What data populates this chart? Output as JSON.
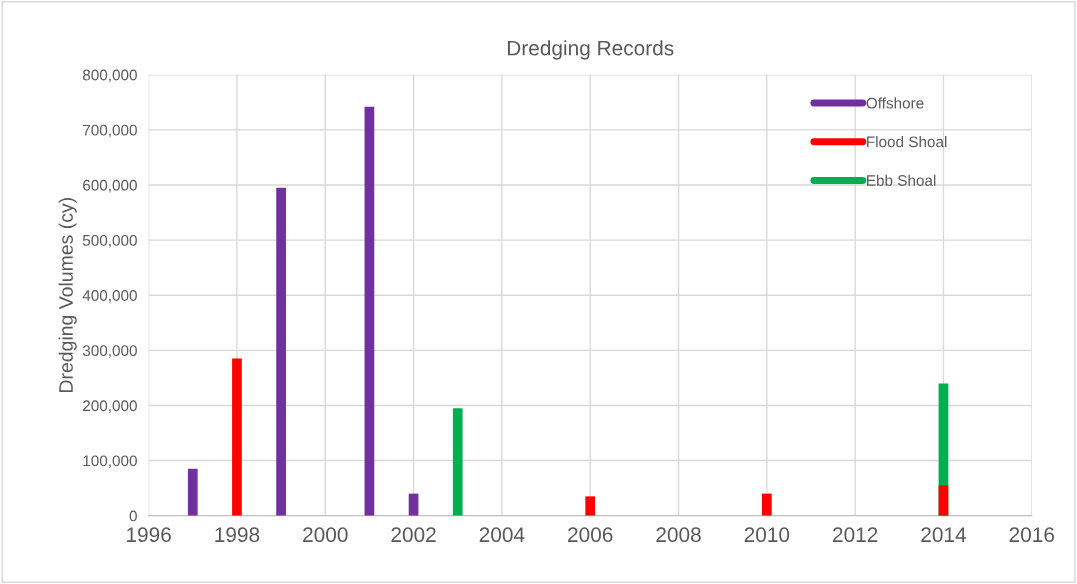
{
  "chart_data": {
    "type": "bar",
    "title": "Dredging Records",
    "ylabel": "Dredging Volumes (cy)",
    "series": [
      {
        "name": "Offshore",
        "color": "#7030a0",
        "x": [
          1997,
          1999,
          2001,
          2002
        ],
        "values": [
          85000,
          595000,
          742000,
          40000
        ]
      },
      {
        "name": "Flood Shoal",
        "color": "#ff0000",
        "x": [
          1998,
          2006,
          2010,
          2014
        ],
        "values": [
          285000,
          35000,
          40000,
          55000
        ]
      },
      {
        "name": "Ebb Shoal",
        "color": "#00b050",
        "x": [
          2003,
          2014
        ],
        "values": [
          195000,
          240000
        ]
      }
    ],
    "xlim": [
      1996,
      2016
    ],
    "xticks": [
      1996,
      1998,
      2000,
      2002,
      2004,
      2006,
      2008,
      2010,
      2012,
      2014,
      2016
    ],
    "ylim": [
      0,
      800000
    ],
    "yticks": [
      {
        "value": 0,
        "label": "0"
      },
      {
        "value": 100000,
        "label": "100,000"
      },
      {
        "value": 200000,
        "label": "200,000"
      },
      {
        "value": 300000,
        "label": "300,000"
      },
      {
        "value": 400000,
        "label": "400,000"
      },
      {
        "value": 500000,
        "label": "500,000"
      },
      {
        "value": 600000,
        "label": "600,000"
      },
      {
        "value": 700000,
        "label": "700,000"
      },
      {
        "value": 800000,
        "label": "800,000"
      }
    ],
    "grid": true,
    "legend": "top right"
  }
}
